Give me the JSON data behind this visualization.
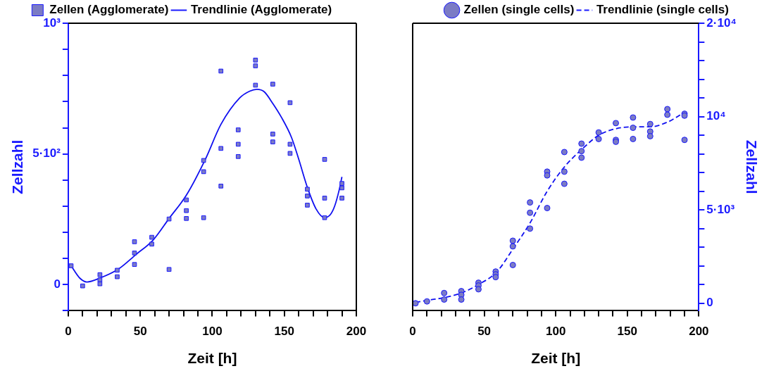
{
  "chart_data": [
    {
      "type": "scatter",
      "xlabel": "Zeit [h]",
      "ylabel": "Zellzahl",
      "legend": "top",
      "grid": false,
      "xlim": [
        0,
        200
      ],
      "xticks": [
        0,
        {
          "value": 10,
          "label": null
        },
        {
          "value": 20,
          "label": null
        },
        {
          "value": 30,
          "label": null
        },
        {
          "value": 40,
          "label": null
        },
        50,
        {
          "value": 60,
          "label": null
        },
        {
          "value": 70,
          "label": null
        },
        {
          "value": 80,
          "label": null
        },
        {
          "value": 90,
          "label": null
        },
        100,
        {
          "value": 110,
          "label": null
        },
        {
          "value": 120,
          "label": null
        },
        {
          "value": 130,
          "label": null
        },
        {
          "value": 140,
          "label": null
        },
        150,
        {
          "value": 160,
          "label": null
        },
        {
          "value": 170,
          "label": null
        },
        {
          "value": 180,
          "label": null
        },
        {
          "value": 190,
          "label": null
        },
        200
      ],
      "ylim": [
        -100,
        1000
      ],
      "yticks": [
        {
          "value": -100,
          "label": null
        },
        0,
        {
          "value": 100,
          "label": null
        },
        {
          "value": 200,
          "label": null
        },
        {
          "value": 300,
          "label": null
        },
        {
          "value": 400,
          "label": null
        },
        {
          "value": 500,
          "label": "5·10²"
        },
        {
          "value": 600,
          "label": null
        },
        {
          "value": 700,
          "label": null
        },
        {
          "value": 800,
          "label": null
        },
        {
          "value": 900,
          "label": null
        },
        {
          "value": 1000,
          "label": "10³"
        }
      ],
      "series": [
        {
          "name": "Zellen (Agglomerate)",
          "type": "scatter",
          "marker": "square",
          "color": "#7b7bc4",
          "x": [
            2,
            10,
            22,
            22,
            22,
            34,
            34,
            46,
            46,
            46,
            58,
            58,
            70,
            70,
            82,
            82,
            82,
            94,
            94,
            94,
            106,
            106,
            106,
            118,
            118,
            118,
            130,
            130,
            130,
            142,
            142,
            142,
            154,
            154,
            154,
            166,
            166,
            166,
            178,
            178,
            178,
            190,
            190,
            190
          ],
          "values": [
            72,
            -5,
            38,
            18,
            3,
            55,
            30,
            164,
            121,
            77,
            181,
            155,
            251,
            58,
            324,
            283,
            253,
            475,
            432,
            256,
            817,
            521,
            377,
            592,
            537,
            490,
            859,
            837,
            763,
            767,
            576,
            546,
            696,
            537,
            502,
            365,
            339,
            304,
            479,
            331,
            256,
            387,
            370,
            331
          ]
        },
        {
          "name": "Trendlinie (Agglomerate)",
          "type": "line",
          "marker": "none",
          "line_style": "solid",
          "color": "#1010f0",
          "x": [
            2,
            8,
            13,
            22,
            35,
            47,
            59,
            70,
            82,
            95,
            106,
            119,
            126,
            131,
            136,
            142,
            148,
            155,
            160,
            166,
            172,
            178,
            182,
            185,
            188,
            190
          ],
          "values": [
            72,
            25,
            10,
            25,
            60,
            115,
            171,
            253,
            342,
            477,
            613,
            714,
            740,
            747,
            738,
            693,
            640,
            563,
            480,
            372,
            290,
            256,
            268,
            301,
            360,
            412
          ]
        }
      ]
    },
    {
      "type": "scatter",
      "xlabel": "Zeit [h]",
      "y2label": "Zellzahl",
      "legend": "top",
      "grid": false,
      "xlim": [
        0,
        200
      ],
      "xticks": [
        0,
        {
          "value": 10,
          "label": null
        },
        {
          "value": 20,
          "label": null
        },
        {
          "value": 30,
          "label": null
        },
        {
          "value": 40,
          "label": null
        },
        50,
        {
          "value": 60,
          "label": null
        },
        {
          "value": 70,
          "label": null
        },
        {
          "value": 80,
          "label": null
        },
        {
          "value": 90,
          "label": null
        },
        100,
        {
          "value": 110,
          "label": null
        },
        {
          "value": 120,
          "label": null
        },
        {
          "value": 130,
          "label": null
        },
        {
          "value": 140,
          "label": null
        },
        150,
        {
          "value": 160,
          "label": null
        },
        {
          "value": 170,
          "label": null
        },
        {
          "value": 180,
          "label": null
        },
        {
          "value": 190,
          "label": null
        },
        200
      ],
      "y2lim": [
        -400,
        15000
      ],
      "y2ticks": [
        0,
        {
          "value": 1000,
          "label": null
        },
        {
          "value": 2000,
          "label": null
        },
        {
          "value": 3000,
          "label": null
        },
        {
          "value": 4000,
          "label": null
        },
        {
          "value": 5000,
          "label": "5·10³"
        },
        {
          "value": 6000,
          "label": null
        },
        {
          "value": 7000,
          "label": null
        },
        {
          "value": 8000,
          "label": null
        },
        {
          "value": 9000,
          "label": null
        },
        {
          "value": 10000,
          "label": "10⁴"
        },
        {
          "value": 11000,
          "label": null
        },
        {
          "value": 12000,
          "label": null
        },
        {
          "value": 13000,
          "label": null
        },
        {
          "value": 14000,
          "label": null
        },
        {
          "value": 15000,
          "label": "2·10⁴"
        }
      ],
      "series": [
        {
          "name": "Zellen (single cells)",
          "type": "scatter",
          "axis": "y2",
          "marker": "circle",
          "color": "#7b7bc4",
          "x": [
            2,
            10,
            22,
            22,
            34,
            34,
            34,
            46,
            46,
            46,
            58,
            58,
            58,
            70,
            70,
            70,
            82,
            82,
            82,
            94,
            94,
            94,
            106,
            106,
            106,
            118,
            118,
            118,
            130,
            130,
            142,
            142,
            142,
            154,
            154,
            154,
            166,
            166,
            166,
            178,
            178,
            190,
            190,
            190
          ],
          "values": [
            0,
            100,
            550,
            200,
            650,
            450,
            200,
            1100,
            950,
            750,
            1700,
            1550,
            1400,
            3350,
            3050,
            2050,
            5400,
            4850,
            4000,
            7050,
            6850,
            5100,
            8100,
            7050,
            6400,
            8550,
            8150,
            7800,
            9150,
            8800,
            9650,
            8750,
            8650,
            9950,
            9400,
            8800,
            9600,
            9200,
            8950,
            10400,
            10100,
            10150,
            10050,
            8750
          ]
        },
        {
          "name": "Trendlinie (single cells)",
          "type": "line",
          "axis": "y2",
          "marker": "none",
          "line_style": "dashed",
          "color": "#1010f0",
          "x": [
            2,
            12,
            22,
            34,
            46,
            59,
            70,
            82,
            94,
            106,
            119,
            130,
            142,
            154,
            166,
            178,
            184,
            190
          ],
          "values": [
            50,
            180,
            300,
            550,
            1000,
            1700,
            2900,
            4300,
            6000,
            7300,
            8300,
            9000,
            9350,
            9450,
            9450,
            9700,
            9950,
            10250
          ]
        }
      ]
    }
  ]
}
